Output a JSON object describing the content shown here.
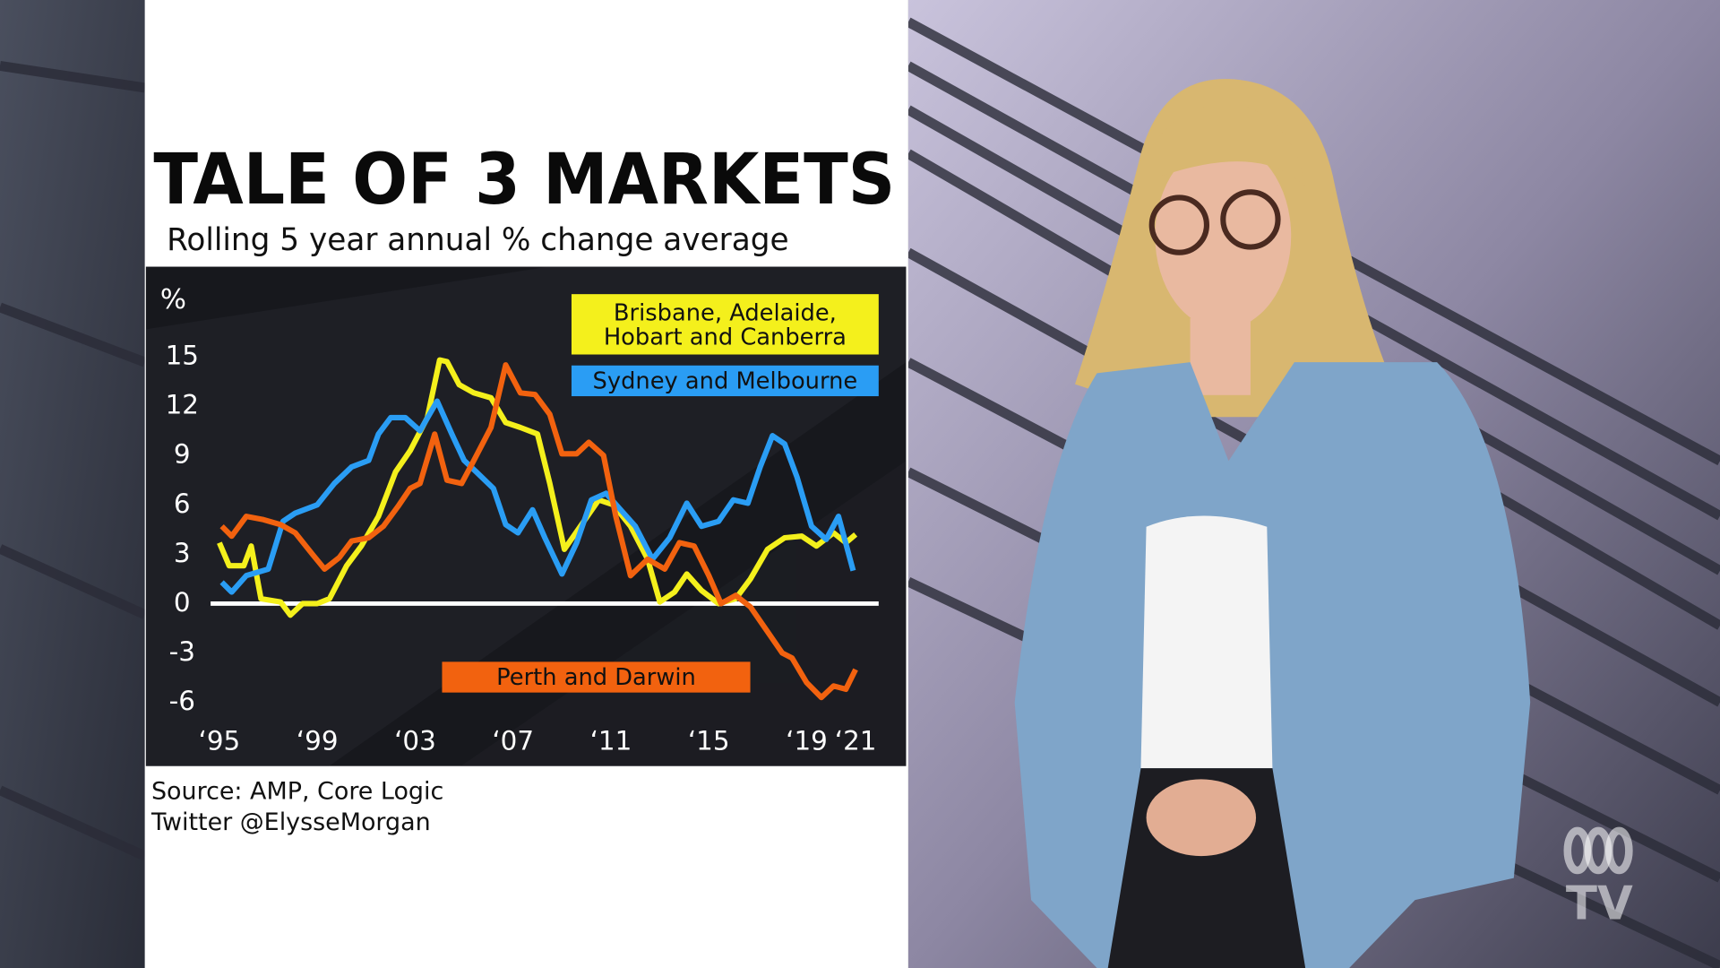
{
  "logo_text": "TV",
  "chart_data": {
    "type": "line",
    "title": "TALE OF 3 MARKETS",
    "subtitle": "Rolling 5 year annual % change average",
    "y_label": "%",
    "source": "Source: AMP, Core Logic",
    "credit": "Twitter @ElysseMorgan",
    "xlim": [
      1995,
      2021
    ],
    "xticks": [
      {
        "value": 1995,
        "label": "‘95"
      },
      {
        "value": 1999,
        "label": "‘99"
      },
      {
        "value": 2003,
        "label": "‘03"
      },
      {
        "value": 2007,
        "label": "‘07"
      },
      {
        "value": 2011,
        "label": "‘11"
      },
      {
        "value": 2015,
        "label": "‘15"
      },
      {
        "value": 2019,
        "label": "‘19"
      },
      {
        "value": 2021,
        "label": "‘21"
      }
    ],
    "ylim": [
      -6,
      15
    ],
    "yticks": [
      15,
      12,
      9,
      6,
      3,
      0,
      -3,
      -6
    ],
    "grid": false,
    "series": [
      {
        "name": "Brisbane, Adelaide, Hobart and Canberra",
        "color": "#f4f01c",
        "x": [
          1995.0,
          1995.4,
          1996.0,
          1996.3,
          1996.7,
          1997.5,
          1997.9,
          1998.4,
          1999.0,
          1999.5,
          2000.2,
          2000.8,
          2001.5,
          2002.2,
          2002.8,
          2003.5,
          2004.0,
          2004.3,
          2004.8,
          2005.4,
          2006.1,
          2006.7,
          2007.3,
          2008.0,
          2008.5,
          2009.1,
          2009.8,
          2010.5,
          2011.1,
          2011.8,
          2012.5,
          2013.0,
          2013.6,
          2014.1,
          2014.7,
          2015.4,
          2016.1,
          2016.7,
          2017.4,
          2018.1,
          2018.8,
          2019.4,
          2020.1,
          2020.6,
          2021.0
        ],
        "values": [
          3.7,
          2.3,
          2.3,
          3.5,
          0.3,
          0.1,
          -0.7,
          0,
          0,
          0.3,
          2.3,
          3.5,
          5.3,
          8,
          9.3,
          11.3,
          14.8,
          14.7,
          13.3,
          12.8,
          12.5,
          11,
          10.7,
          10.3,
          7.3,
          3.3,
          4.8,
          6.3,
          6,
          4.7,
          2.7,
          0.1,
          0.7,
          1.8,
          0.8,
          0,
          0.3,
          1.5,
          3.3,
          4,
          4.1,
          3.5,
          4.3,
          3.7,
          4.2
        ]
      },
      {
        "name": "Sydney and Melbourne",
        "color": "#2a9df4",
        "x": [
          1995.1,
          1995.5,
          1996.1,
          1997.0,
          1997.6,
          1998.1,
          1999.0,
          1999.7,
          2000.4,
          2001.1,
          2001.5,
          2002.0,
          2002.6,
          2003.2,
          2003.9,
          2004.5,
          2005.0,
          2005.5,
          2006.2,
          2006.7,
          2007.2,
          2007.8,
          2008.3,
          2009.0,
          2009.6,
          2010.2,
          2010.8,
          2011.4,
          2012.0,
          2012.7,
          2013.4,
          2014.1,
          2014.7,
          2015.4,
          2016.0,
          2016.6,
          2017.1,
          2017.6,
          2018.1,
          2018.6,
          2019.2,
          2019.8,
          2020.3,
          2020.9
        ],
        "values": [
          1.3,
          0.7,
          1.7,
          2.1,
          5,
          5.5,
          6,
          7.3,
          8.3,
          8.7,
          10.3,
          11.3,
          11.3,
          10.5,
          12.3,
          10.3,
          8.7,
          8,
          7,
          4.8,
          4.3,
          5.7,
          4,
          1.8,
          3.7,
          6.3,
          6.7,
          5.7,
          4.7,
          2.7,
          4,
          6.1,
          4.7,
          5,
          6.3,
          6.1,
          8.3,
          10.2,
          9.7,
          7.7,
          4.7,
          3.9,
          5.3,
          2
        ]
      },
      {
        "name": "Perth and Darwin",
        "color": "#f2620f",
        "x": [
          1995.1,
          1995.5,
          1996.1,
          1996.8,
          1997.5,
          1998.1,
          1998.8,
          1999.3,
          1999.9,
          2000.4,
          2001.1,
          2001.7,
          2002.3,
          2002.8,
          2003.2,
          2003.8,
          2004.3,
          2004.9,
          2005.4,
          2006.1,
          2006.7,
          2007.3,
          2007.9,
          2008.5,
          2009.0,
          2009.6,
          2010.1,
          2010.7,
          2011.2,
          2011.8,
          2012.5,
          2013.2,
          2013.8,
          2014.4,
          2015.0,
          2015.5,
          2016.1,
          2016.7,
          2017.4,
          2018.0,
          2018.4,
          2019.0,
          2019.6,
          2020.1,
          2020.6,
          2021.0
        ],
        "values": [
          4.7,
          4.1,
          5.3,
          5.1,
          4.8,
          4.3,
          3,
          2.1,
          2.8,
          3.8,
          4,
          4.7,
          5.9,
          7,
          7.3,
          10.3,
          7.5,
          7.3,
          8.7,
          10.7,
          14.5,
          12.8,
          12.7,
          11.5,
          9.1,
          9.1,
          9.8,
          9,
          5.3,
          1.7,
          2.7,
          2.1,
          3.7,
          3.5,
          1.7,
          0,
          0.5,
          -0.2,
          -1.7,
          -3,
          -3.3,
          -4.8,
          -5.7,
          -5,
          -5.2,
          -4
        ]
      }
    ]
  }
}
